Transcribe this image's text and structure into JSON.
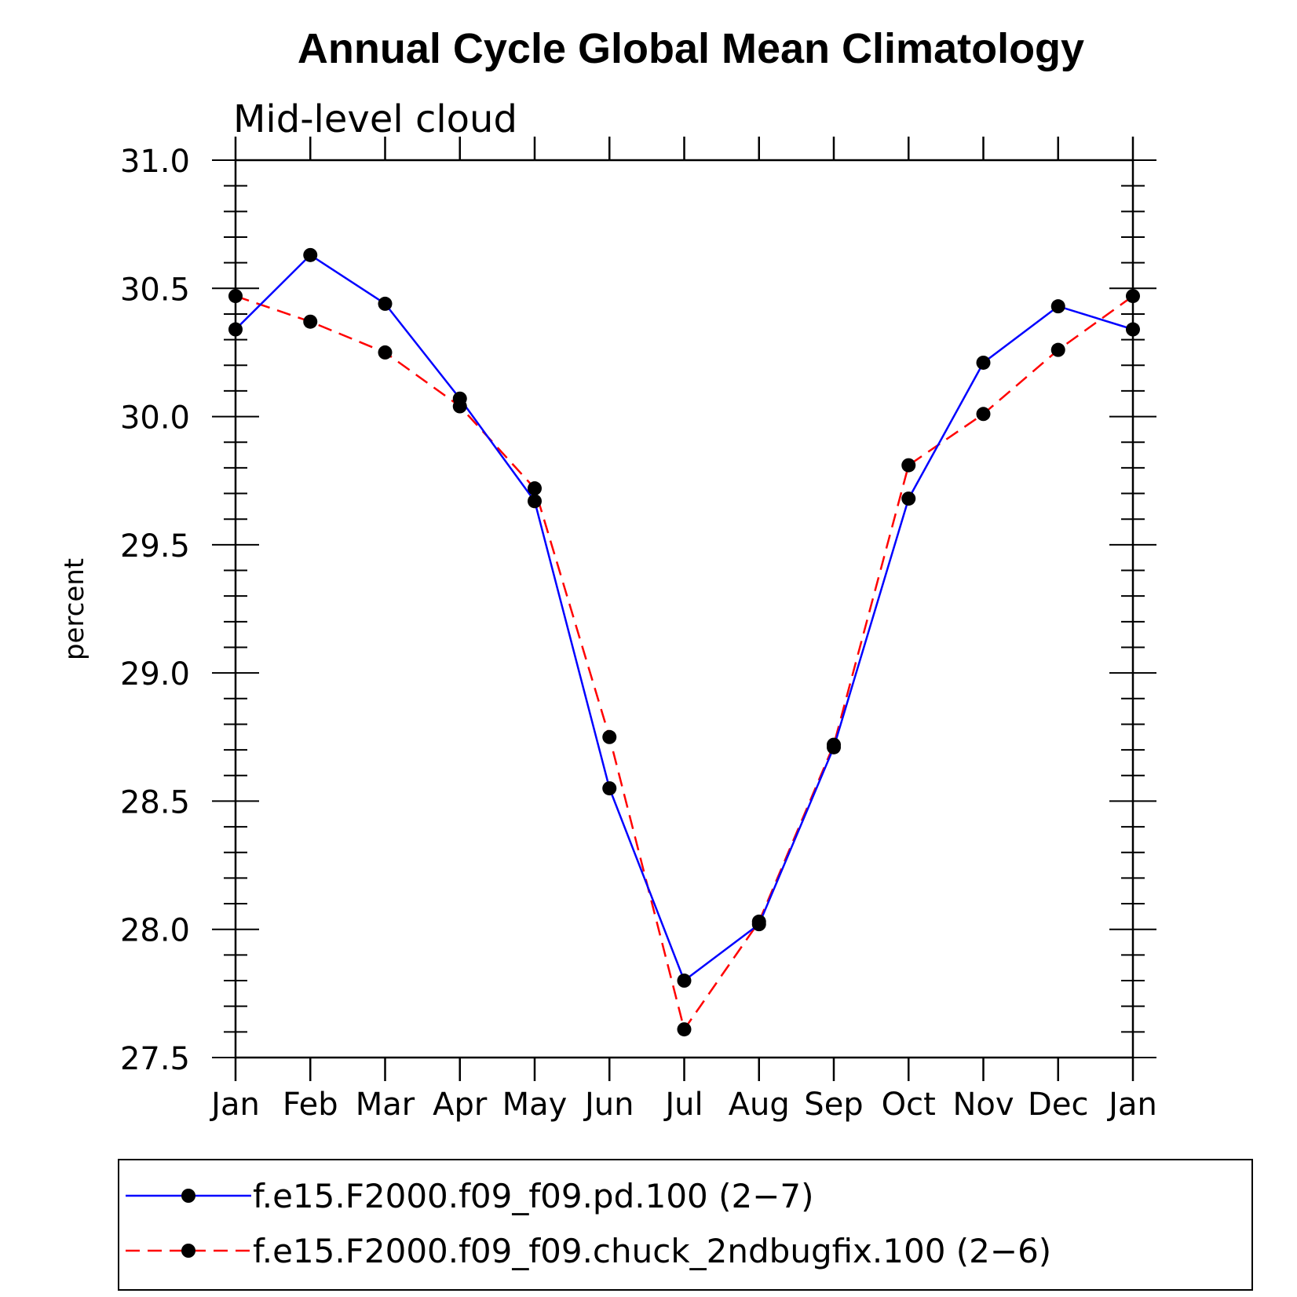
{
  "chart_data": {
    "type": "line",
    "title": "Annual Cycle Global Mean Climatology",
    "subtitle": "Mid-level cloud",
    "xlabel": "",
    "ylabel": "percent",
    "categories": [
      "Jan",
      "Feb",
      "Mar",
      "Apr",
      "May",
      "Jun",
      "Jul",
      "Aug",
      "Sep",
      "Oct",
      "Nov",
      "Dec",
      "Jan"
    ],
    "ylim": [
      27.5,
      31.0
    ],
    "yticks": [
      "27.5",
      "28.0",
      "28.5",
      "29.0",
      "29.5",
      "30.0",
      "30.5",
      "31.0"
    ],
    "grid": false,
    "legend_position": "bottom",
    "series": [
      {
        "name": "f.e15.F2000.f09_f09.pd.100 (2−7)",
        "color": "#0000ff",
        "dash": "solid",
        "marker": "filled-circle",
        "values": [
          30.34,
          30.63,
          30.44,
          30.07,
          29.67,
          28.55,
          27.8,
          28.02,
          28.71,
          29.68,
          30.21,
          30.43,
          30.34
        ]
      },
      {
        "name": "f.e15.F2000.f09_f09.chuck_2ndbugfix.100 (2−6)",
        "color": "#ff0000",
        "dash": "dashed",
        "marker": "filled-circle",
        "values": [
          30.47,
          30.37,
          30.25,
          30.04,
          29.72,
          28.75,
          27.61,
          28.03,
          28.72,
          29.81,
          30.01,
          30.26,
          30.47
        ]
      }
    ]
  }
}
